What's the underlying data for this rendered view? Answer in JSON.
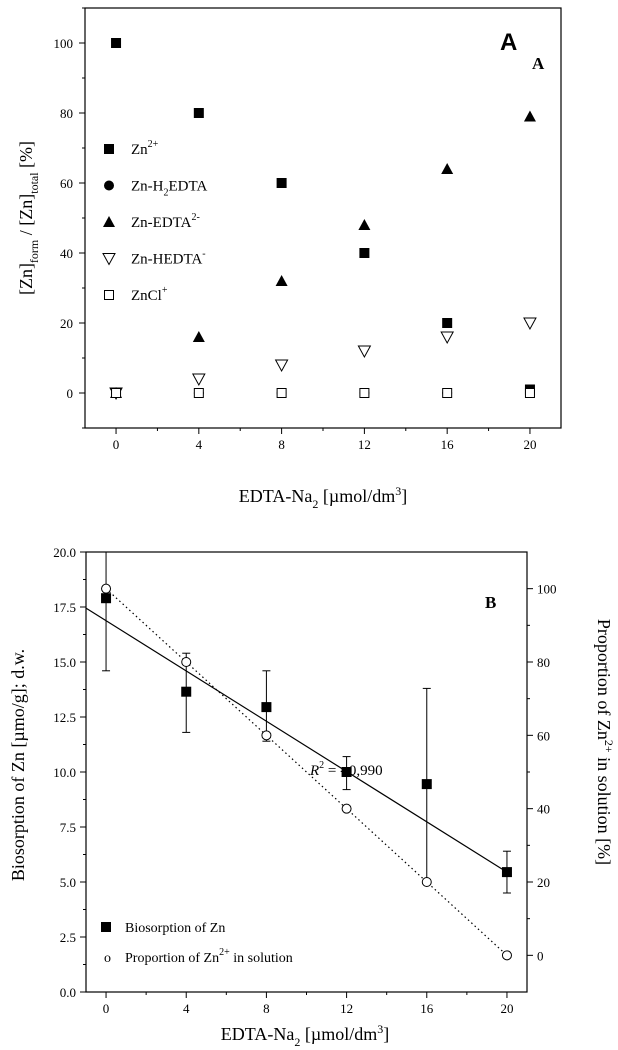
{
  "chart_data": [
    {
      "type": "scatter",
      "panel_label": "A",
      "panel_label_small": "A",
      "xlabel": "EDTA-Na",
      "xlabel_sub": "2",
      "xlabel_unit": " [µmol/dm",
      "xlabel_unit_sup": "3",
      "xlabel_end": "]",
      "ylabel_parts": [
        "[Zn]",
        "form",
        " / [Zn]",
        "total",
        " [%]"
      ],
      "xlim": [
        -1.5,
        21.5
      ],
      "ylim": [
        -10,
        110
      ],
      "x_ticks": [
        "0",
        "4",
        "8",
        "12",
        "16",
        "20"
      ],
      "y_ticks": [
        "0",
        "20",
        "40",
        "60",
        "80",
        "100"
      ],
      "x": [
        0,
        4,
        8,
        12,
        16,
        20
      ],
      "series": [
        {
          "name": "Zn",
          "name_sup": "2+",
          "name_sub": "",
          "name_tail": "",
          "marker": "square-filled",
          "values": [
            100,
            80,
            60,
            40,
            20,
            1
          ]
        },
        {
          "name": "Zn-H",
          "name_sub": "2",
          "name_tail": "EDTA",
          "name_sup": "",
          "marker": "circle-filled",
          "values": [
            0,
            0,
            0,
            0,
            0,
            0
          ]
        },
        {
          "name": "Zn-EDTA",
          "name_sup": "2-",
          "name_sub": "",
          "name_tail": "",
          "marker": "triangle-filled",
          "values": [
            0,
            16,
            32,
            48,
            64,
            79
          ]
        },
        {
          "name": "Zn-HEDTA",
          "name_sup": "-",
          "name_sub": "",
          "name_tail": "",
          "marker": "triangle-down-open",
          "values": [
            0,
            4,
            8,
            12,
            16,
            20
          ]
        },
        {
          "name": "ZnCl",
          "name_sup": "+",
          "name_sub": "",
          "name_tail": "",
          "marker": "square-open",
          "values": [
            0,
            0,
            0,
            0,
            0,
            0
          ]
        }
      ],
      "legend_position": "left"
    },
    {
      "type": "scatter",
      "panel_label": "B",
      "xlabel": "EDTA-Na",
      "xlabel_sub": "2",
      "xlabel_unit": " [µmol/dm",
      "xlabel_unit_sup": "3",
      "xlabel_end": "]",
      "ylabel_left": "Biosorption of Zn [µmo/g]; d.w.",
      "ylabel_right_parts": [
        "Proportion of Zn",
        "2+",
        " in solution [%]"
      ],
      "xlim": [
        -1,
        21
      ],
      "ylim_left": [
        0,
        20
      ],
      "ylim_right": [
        -10,
        110
      ],
      "x_ticks": [
        "0",
        "4",
        "8",
        "12",
        "16",
        "20"
      ],
      "y_ticks_left": [
        "0.0",
        "2.5",
        "5.0",
        "7.5",
        "10.0",
        "12.5",
        "15.0",
        "17.5",
        "20.0"
      ],
      "y_ticks_right": [
        "0",
        "20",
        "40",
        "60",
        "80",
        "100"
      ],
      "x": [
        0,
        4,
        8,
        12,
        16,
        20
      ],
      "series": [
        {
          "name": "Biosorption of Zn",
          "axis": "left",
          "marker": "square-filled",
          "values": [
            17.9,
            13.65,
            12.95,
            10.0,
            9.45,
            5.45
          ],
          "error_upper": [
            20.0,
            15.4,
            14.6,
            10.7,
            13.8,
            6.4
          ],
          "error_lower": [
            14.6,
            11.8,
            11.4,
            9.2,
            5.1,
            4.5
          ],
          "fit_line": {
            "x": [
              -1,
              20
            ],
            "y": [
              17.45,
              5.45
            ],
            "style": "solid"
          }
        },
        {
          "name": "Proportion of Zn",
          "name_sup": "2+",
          "name_tail": " in solution",
          "axis": "right",
          "marker": "circle-open",
          "values": [
            100,
            80,
            60,
            40,
            20,
            0
          ],
          "fit_line": {
            "x": [
              0,
              20
            ],
            "y": [
              100,
              0
            ],
            "style": "dotted"
          }
        }
      ],
      "annotation": {
        "text_R": "R",
        "text_sup": "2",
        "text_rest": " = - 0,990"
      },
      "legend_position": "bottom-left"
    }
  ]
}
